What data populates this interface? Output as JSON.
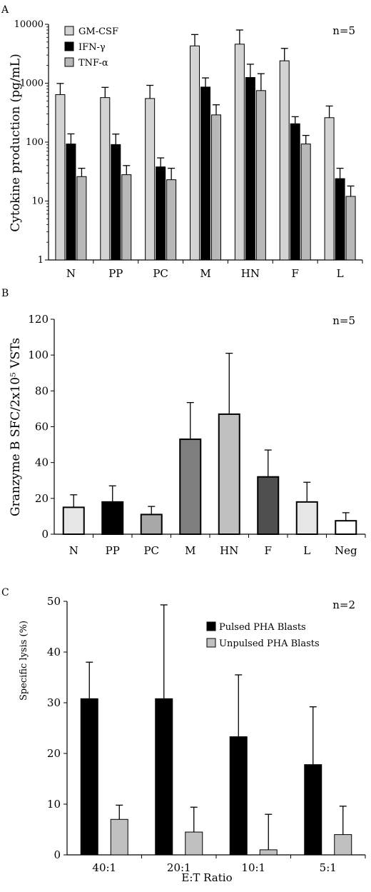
{
  "chart_data": [
    {
      "panel": "A",
      "type": "bar",
      "scale": "log",
      "note": "n=5",
      "ylabel": "Cytokine production (pg/mL)",
      "ylim": [
        1,
        10000
      ],
      "yticks": [
        "1",
        "10",
        "100",
        "1000",
        "10000"
      ],
      "categories": [
        "N",
        "PP",
        "PC",
        "M",
        "HN",
        "F",
        "L"
      ],
      "legend_position": "top-left",
      "series": [
        {
          "name": "GM-CSF",
          "color": "#d3d3d3",
          "values": [
            640,
            570,
            550,
            4300,
            4600,
            2400,
            260
          ],
          "errors": [
            990,
            850,
            920,
            6700,
            8000,
            3900,
            410
          ]
        },
        {
          "name": "IFN-γ",
          "color": "#000000",
          "values": [
            93,
            91,
            38,
            860,
            1250,
            205,
            24
          ],
          "errors": [
            138,
            137,
            54,
            1230,
            2100,
            270,
            36
          ]
        },
        {
          "name": "TNF-α",
          "color": "#b8b8b8",
          "values": [
            26,
            28,
            23,
            290,
            750,
            93,
            12
          ],
          "errors": [
            36,
            40,
            36,
            430,
            1450,
            130,
            18
          ]
        }
      ]
    },
    {
      "panel": "B",
      "type": "bar",
      "note": "n=5",
      "ylabel": "Granzyme B SFC/2x10⁵ VSTs",
      "ylim": [
        0,
        120
      ],
      "yticks": [
        "0",
        "20",
        "40",
        "60",
        "80",
        "100",
        "120"
      ],
      "categories": [
        "N",
        "PP",
        "PC",
        "M",
        "HN",
        "F",
        "L",
        "Neg"
      ],
      "colors": [
        "#e6e6e6",
        "#000000",
        "#a8a8a8",
        "#7f7f7f",
        "#c0c0c0",
        "#4f4f4f",
        "#e6e6e6",
        "#ffffff"
      ],
      "values": [
        15,
        18,
        11,
        53,
        67,
        32,
        18,
        7.5
      ],
      "errors": [
        22,
        27,
        15.5,
        73.5,
        101,
        47,
        29,
        12
      ]
    },
    {
      "panel": "C",
      "type": "bar",
      "note": "n=2",
      "xlabel": "E:T Ratio",
      "ylabel": "Specific lysis (%)",
      "ylim": [
        0,
        50
      ],
      "yticks": [
        "0",
        "10",
        "20",
        "30",
        "40",
        "50"
      ],
      "categories": [
        "40:1",
        "20:1",
        "10:1",
        "5:1"
      ],
      "legend_position": "top-right",
      "series": [
        {
          "name": "Pulsed PHA Blasts",
          "color": "#000000",
          "values": [
            30.8,
            30.8,
            23.3,
            17.8
          ],
          "errors": [
            38,
            49.3,
            35.5,
            29.2
          ]
        },
        {
          "name": "Unpulsed PHA Blasts",
          "color": "#c0c0c0",
          "values": [
            7,
            4.5,
            1,
            4
          ],
          "errors": [
            9.8,
            9.4,
            8,
            9.6
          ]
        }
      ]
    }
  ]
}
